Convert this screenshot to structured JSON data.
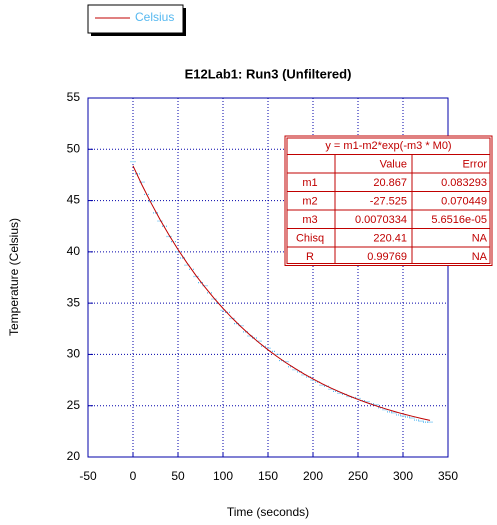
{
  "chart_data": {
    "type": "scatter",
    "title": "E12Lab1: Run3 (Unfiltered)",
    "x_label": "Time (seconds)",
    "y_label": "Temperature (Celsius)",
    "xlim": [
      -50,
      350
    ],
    "xticks": [
      -50,
      0,
      50,
      100,
      150,
      200,
      250,
      300,
      350
    ],
    "ylim": [
      20,
      55
    ],
    "yticks": [
      20,
      25,
      30,
      35,
      40,
      45,
      50,
      55
    ],
    "grid": true,
    "legend": "top-left",
    "series": [
      {
        "name": "Celsius",
        "color": "#55b8f0",
        "x": [
          0,
          5,
          10,
          15,
          20,
          25,
          30,
          35,
          40,
          45,
          50,
          55,
          60,
          65,
          70,
          75,
          80,
          85,
          90,
          95,
          100,
          105,
          110,
          115,
          120,
          125,
          130,
          135,
          140,
          145,
          150,
          155,
          160,
          165,
          170,
          175,
          180,
          185,
          190,
          195,
          200,
          205,
          210,
          215,
          220,
          225,
          230,
          235,
          240,
          245,
          250,
          255,
          260,
          265,
          270,
          275,
          280,
          285,
          290,
          295,
          300,
          305,
          310,
          315,
          320,
          325,
          330
        ],
        "values": [
          48.8,
          47.6,
          46.8,
          45.6,
          44.9,
          43.8,
          43.0,
          42.5,
          41.5,
          41.0,
          40.0,
          39.4,
          38.7,
          38.3,
          37.6,
          37.0,
          36.7,
          36.0,
          35.4,
          35.0,
          34.3,
          34.1,
          33.5,
          33.0,
          32.8,
          32.2,
          31.8,
          31.6,
          31.3,
          30.8,
          30.6,
          30.3,
          30.0,
          29.4,
          29.3,
          28.8,
          28.5,
          28.3,
          28.0,
          27.8,
          27.5,
          27.3,
          27.0,
          26.9,
          26.6,
          26.4,
          26.2,
          26.1,
          25.9,
          25.8,
          25.7,
          25.5,
          25.4,
          25.2,
          25.1,
          24.8,
          24.6,
          24.4,
          24.3,
          24.1,
          24.0,
          23.9,
          23.8,
          23.6,
          23.5,
          23.4,
          23.4
        ]
      }
    ],
    "fit": {
      "color": "#c00000",
      "x": [
        0,
        10,
        20,
        30,
        40,
        50,
        60,
        70,
        80,
        90,
        100,
        110,
        120,
        130,
        140,
        150,
        160,
        170,
        180,
        190,
        200,
        210,
        220,
        230,
        240,
        250,
        260,
        270,
        280,
        290,
        300,
        310,
        320,
        330
      ],
      "values": [
        48.39,
        46.52,
        44.78,
        43.16,
        41.64,
        40.23,
        38.92,
        37.69,
        36.55,
        35.48,
        34.49,
        33.56,
        32.7,
        31.9,
        31.15,
        30.45,
        29.8,
        29.19,
        28.63,
        28.1,
        27.61,
        27.15,
        26.72,
        26.33,
        25.96,
        25.61,
        25.29,
        24.99,
        24.71,
        24.45,
        24.2,
        23.98,
        23.77,
        23.57
      ]
    },
    "fit_table": {
      "equation": "y = m1-m2*exp(-m3 * M0)",
      "columns": [
        "Value",
        "Error"
      ],
      "rows": [
        [
          "m1",
          "20.867",
          "0.083293"
        ],
        [
          "m2",
          "-27.525",
          "0.070449"
        ],
        [
          "m3",
          "0.0070334",
          "5.6516e-05"
        ],
        [
          "Chisq",
          "220.41",
          "NA"
        ],
        [
          "R",
          "0.99769",
          "NA"
        ]
      ]
    }
  }
}
